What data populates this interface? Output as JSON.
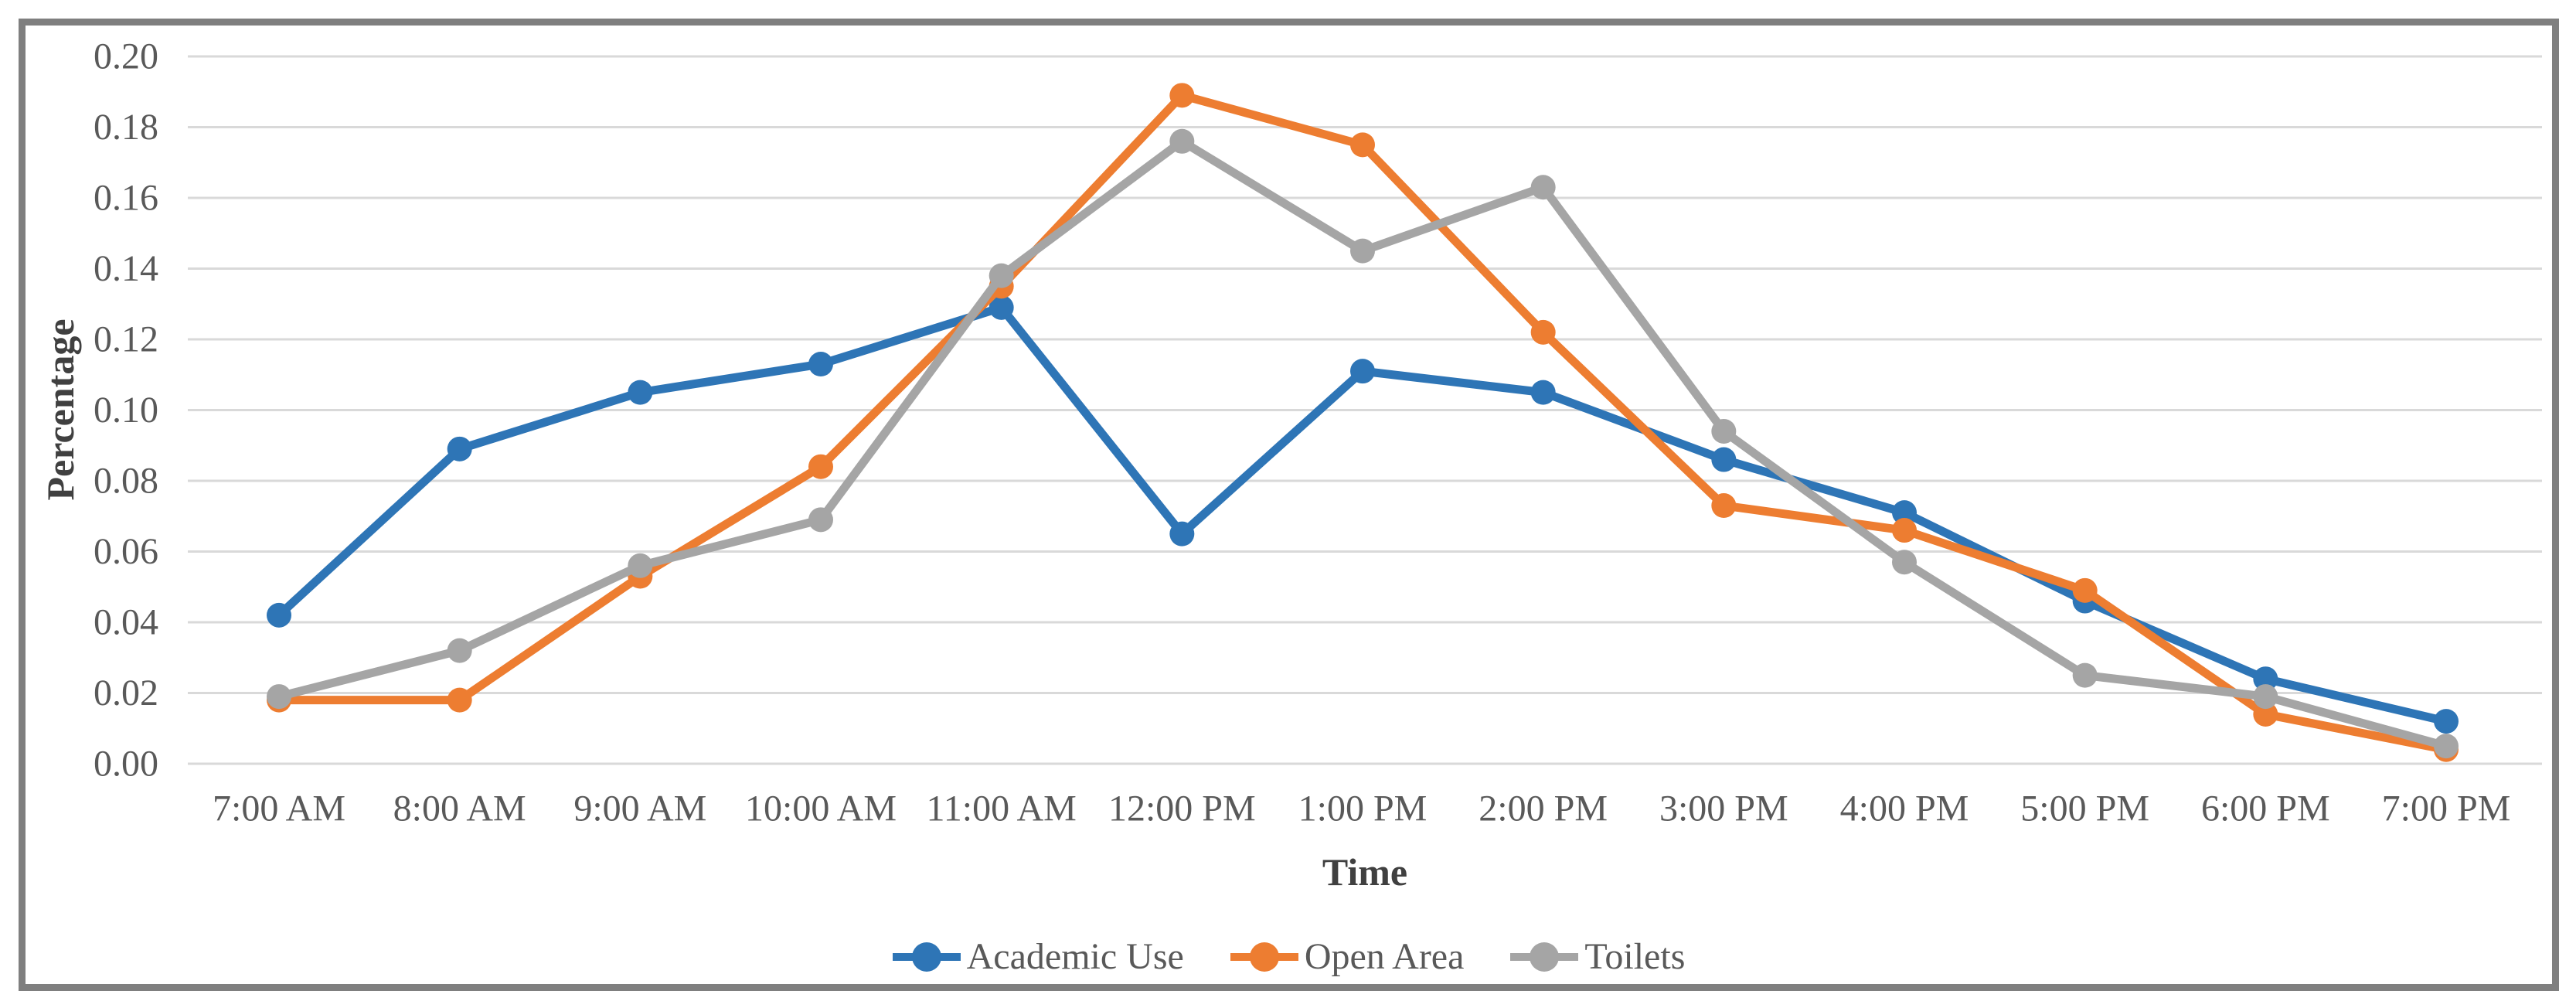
{
  "chart_data": {
    "type": "line",
    "title": "",
    "xlabel": "Time",
    "ylabel": "Percentage",
    "categories": [
      "7:00 AM",
      "8:00 AM",
      "9:00 AM",
      "10:00 AM",
      "11:00 AM",
      "12:00 PM",
      "1:00 PM",
      "2:00 PM",
      "3:00 PM",
      "4:00 PM",
      "5:00 PM",
      "6:00 PM",
      "7:00 PM"
    ],
    "series": [
      {
        "name": "Academic Use",
        "color": "#2E75B6",
        "values": [
          0.042,
          0.089,
          0.105,
          0.113,
          0.129,
          0.065,
          0.111,
          0.105,
          0.086,
          0.071,
          0.046,
          0.024,
          0.012
        ]
      },
      {
        "name": "Open Area",
        "color": "#ED7D31",
        "values": [
          0.018,
          0.018,
          0.053,
          0.084,
          0.135,
          0.189,
          0.175,
          0.122,
          0.073,
          0.066,
          0.049,
          0.014,
          0.004
        ]
      },
      {
        "name": "Toilets",
        "color": "#A5A5A5",
        "values": [
          0.019,
          0.032,
          0.056,
          0.069,
          0.138,
          0.176,
          0.145,
          0.163,
          0.094,
          0.057,
          0.025,
          0.019,
          0.005
        ]
      }
    ],
    "ylim": [
      0.0,
      0.2
    ],
    "ytick_step": 0.02,
    "ytick_labels": [
      "0.00",
      "0.02",
      "0.04",
      "0.06",
      "0.08",
      "0.10",
      "0.12",
      "0.14",
      "0.16",
      "0.18",
      "0.20"
    ],
    "grid": true,
    "legend_position": "bottom",
    "gridline_color": "#d9d9d9",
    "tick_label_color": "#595959",
    "axis_title_color": "#404040",
    "frame_border_color": "#7f7f7f"
  }
}
